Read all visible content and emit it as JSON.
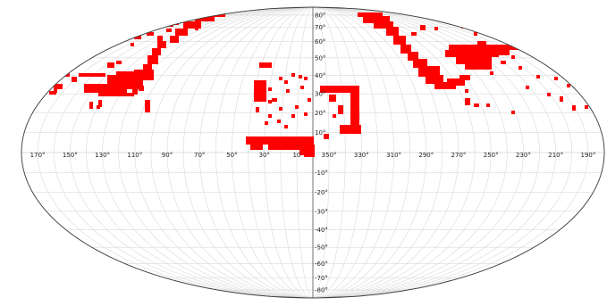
{
  "map": {
    "projection": "mollweide",
    "lat_labels": [
      "80°",
      "70°",
      "60°",
      "50°",
      "40°",
      "30°",
      "20°",
      "10°",
      "-10°",
      "-20°",
      "-30°",
      "-40°",
      "-50°",
      "-60°",
      "-70°",
      "-80°"
    ],
    "lat_values": [
      80,
      70,
      60,
      50,
      40,
      30,
      20,
      10,
      -10,
      -20,
      -30,
      -40,
      -50,
      -60,
      -70,
      -80
    ],
    "lon_labels": [
      "170°",
      "150°",
      "130°",
      "110°",
      "90°",
      "70°",
      "50°",
      "30°",
      "10",
      "350°",
      "330°",
      "310°",
      "290°",
      "270°",
      "250°",
      "230°",
      "210°",
      "190°"
    ],
    "lon_values": [
      170,
      150,
      130,
      110,
      90,
      70,
      50,
      30,
      10,
      350,
      330,
      310,
      290,
      270,
      250,
      230,
      210,
      190
    ],
    "grid": true,
    "colors": {
      "coverage": "#ff0000",
      "grid": "#d9d9d9",
      "outline": "#444444",
      "background": "#ffffff"
    }
  }
}
